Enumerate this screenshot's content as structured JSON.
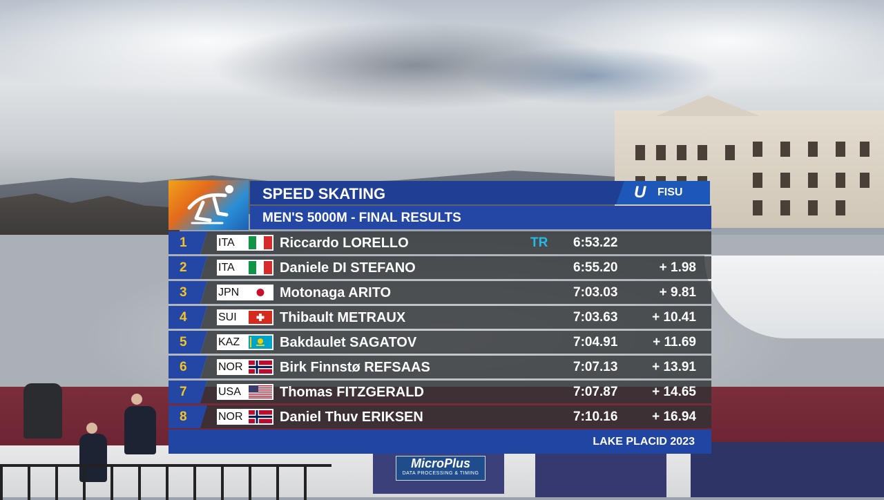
{
  "header": {
    "sport": "SPEED SKATING",
    "event": "MEN'S 5000M - FINAL RESULTS",
    "federation": "FISU",
    "federation_mark": "U"
  },
  "results": [
    {
      "rank": "1",
      "nat": "ITA",
      "flag": "ita-flag",
      "name": "Riccardo LORELLO",
      "record": "TR",
      "time": "6:53.22",
      "diff": ""
    },
    {
      "rank": "2",
      "nat": "ITA",
      "flag": "ita-flag",
      "name": "Daniele DI STEFANO",
      "record": "",
      "time": "6:55.20",
      "diff": "+ 1.98"
    },
    {
      "rank": "3",
      "nat": "JPN",
      "flag": "jpn-flag",
      "name": "Motonaga ARITO",
      "record": "",
      "time": "7:03.03",
      "diff": "+ 9.81"
    },
    {
      "rank": "4",
      "nat": "SUI",
      "flag": "sui-flag",
      "name": "Thibault METRAUX",
      "record": "",
      "time": "7:03.63",
      "diff": "+ 10.41"
    },
    {
      "rank": "5",
      "nat": "KAZ",
      "flag": "kaz-flag",
      "name": "Bakdaulet SAGATOV",
      "record": "",
      "time": "7:04.91",
      "diff": "+ 11.69"
    },
    {
      "rank": "6",
      "nat": "NOR",
      "flag": "nor-flag",
      "name": "Birk Finnstø REFSAAS",
      "record": "",
      "time": "7:07.13",
      "diff": "+ 13.91"
    },
    {
      "rank": "7",
      "nat": "USA",
      "flag": "usa-flag",
      "name": "Thomas FITZGERALD",
      "record": "",
      "time": "7:07.87",
      "diff": "+ 14.65"
    },
    {
      "rank": "8",
      "nat": "NOR",
      "flag": "nor-flag",
      "name": "Daniel Thuv ERIKSEN",
      "record": "",
      "time": "7:10.16",
      "diff": "+ 16.94"
    }
  ],
  "footer": {
    "location": "LAKE PLACID 2023"
  },
  "sponsor": {
    "name": "MicroPlus",
    "tagline": "DATA PROCESSING & TIMING"
  },
  "colors": {
    "title_bar": "#1f3f94",
    "rank_text": "#f3c425",
    "record_text": "#27b8e8",
    "row_background": "#303234"
  },
  "icons": {
    "sport_logo": "speed-skater-icon"
  }
}
